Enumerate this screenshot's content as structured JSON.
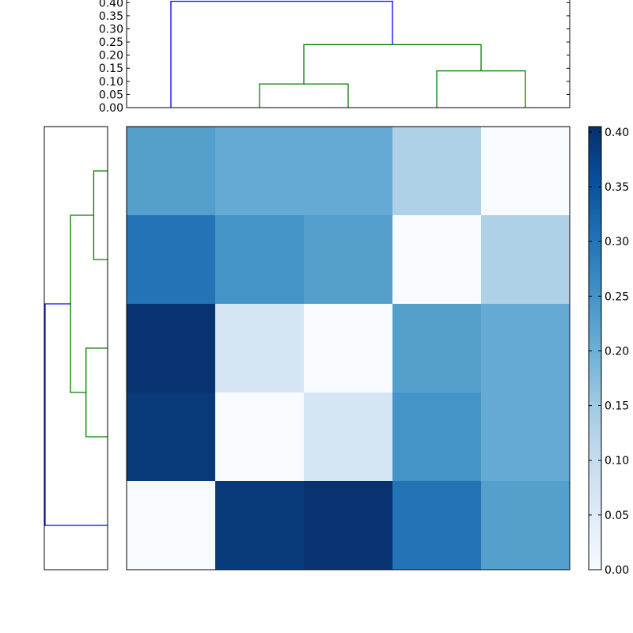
{
  "chart_data": [
    {
      "type": "dendrogram",
      "name": "top-dendrogram",
      "orientation": "top",
      "yticks": [
        "0.00",
        "0.05",
        "0.10",
        "0.15",
        "0.20",
        "0.25",
        "0.30",
        "0.35",
        "0.40"
      ],
      "ylim": [
        0,
        0.41
      ],
      "leaves": 5,
      "links": [
        {
          "left": 1,
          "right": 2,
          "height": 0.09,
          "color": "#008000"
        },
        {
          "left": 3,
          "right": 4,
          "height": 0.14,
          "color": "#008000"
        },
        {
          "left": 1.5,
          "right": 3.5,
          "height": 0.24,
          "color": "#008000"
        },
        {
          "left": 0,
          "right": 2.5,
          "height": 0.405,
          "color": "#0000ff"
        }
      ]
    },
    {
      "type": "dendrogram",
      "name": "left-dendrogram",
      "orientation": "left",
      "leaves": 5,
      "links": [
        {
          "left": 0,
          "right": 1,
          "height": 0.09,
          "color": "#008000"
        },
        {
          "left": 2,
          "right": 3,
          "height": 0.14,
          "color": "#008000"
        },
        {
          "left": 0.5,
          "right": 2.5,
          "height": 0.24,
          "color": "#008000"
        },
        {
          "left": 4,
          "right": 1.5,
          "height": 0.405,
          "color": "#0000ff"
        }
      ]
    },
    {
      "type": "heatmap",
      "name": "distance-matrix",
      "colormap": "Blues",
      "vmin": 0,
      "vmax": 0.405,
      "values": [
        [
          0.23,
          0.21,
          0.21,
          0.13,
          0.0
        ],
        [
          0.3,
          0.25,
          0.23,
          0.0,
          0.13
        ],
        [
          0.4,
          0.07,
          0.0,
          0.23,
          0.21
        ],
        [
          0.39,
          0.0,
          0.07,
          0.25,
          0.21
        ],
        [
          0.0,
          0.39,
          0.4,
          0.3,
          0.23
        ]
      ]
    },
    {
      "type": "colorbar",
      "name": "colorbar",
      "ticks": [
        "0.00",
        "0.05",
        "0.10",
        "0.15",
        "0.20",
        "0.25",
        "0.30",
        "0.35",
        "0.40"
      ],
      "range": [
        0,
        0.405
      ]
    }
  ]
}
